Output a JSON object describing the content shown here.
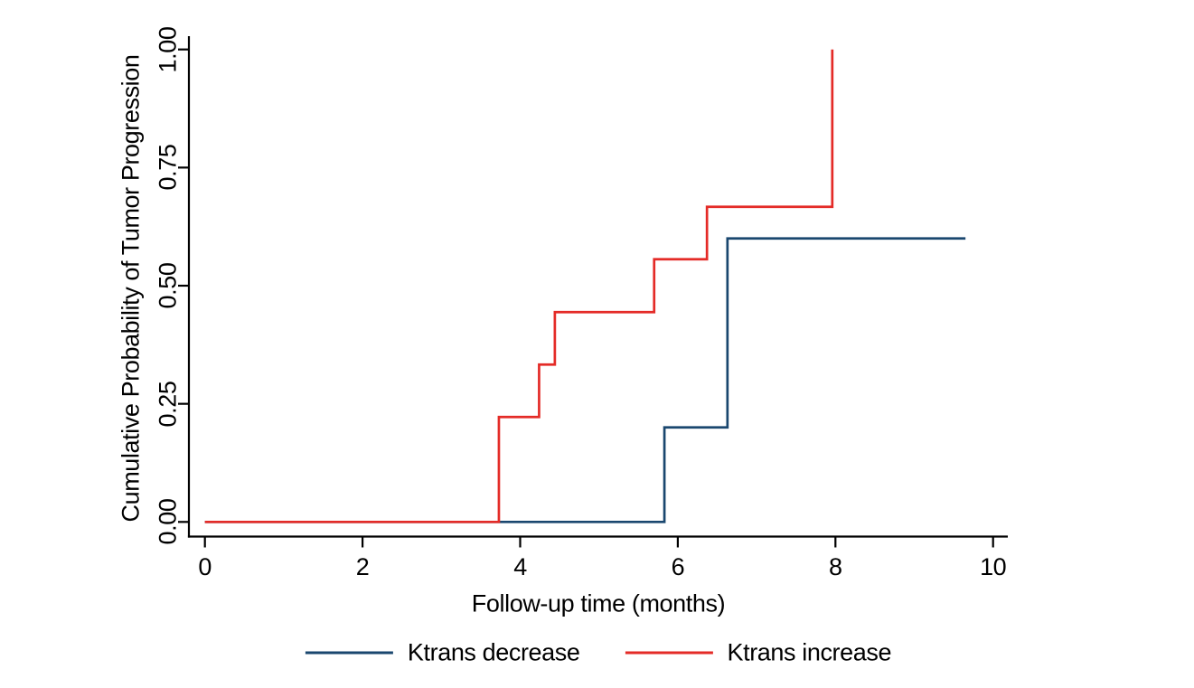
{
  "figure": {
    "background": "#ffffff",
    "text_color": "#000000",
    "axis_color": "#000000"
  },
  "chart_data": {
    "type": "line",
    "subtype": "kaplan-meier-step",
    "title": "",
    "xlabel": "Follow-up time (months)",
    "ylabel": "Cumulative Probability of Tumor Progression",
    "xlim": [
      0,
      10.4
    ],
    "ylim": [
      0,
      1.0
    ],
    "x_ticks": {
      "values": [
        0,
        2,
        4,
        6,
        8,
        10
      ],
      "labels": [
        "0",
        "2",
        "4",
        "6",
        "8",
        "10"
      ]
    },
    "y_ticks": {
      "values": [
        0,
        0.25,
        0.5,
        0.75,
        1.0
      ],
      "labels": [
        "0.00",
        "0.25",
        "0.50",
        "0.75",
        "1.00"
      ]
    },
    "grid": false,
    "legend_position": "bottom-center",
    "series": [
      {
        "name": "Ktrans decrease",
        "color": "#1a476f",
        "step_points": [
          [
            0,
            0
          ],
          [
            5.83,
            0
          ],
          [
            5.83,
            0.2
          ],
          [
            6.63,
            0.2
          ],
          [
            6.63,
            0.6
          ],
          [
            9.65,
            0.6
          ]
        ]
      },
      {
        "name": "Ktrans increase",
        "color": "#e42b27",
        "step_points": [
          [
            0,
            0
          ],
          [
            3.73,
            0
          ],
          [
            3.73,
            0.222
          ],
          [
            4.24,
            0.222
          ],
          [
            4.24,
            0.333
          ],
          [
            4.44,
            0.333
          ],
          [
            4.44,
            0.444
          ],
          [
            5.7,
            0.444
          ],
          [
            5.7,
            0.556
          ],
          [
            6.37,
            0.556
          ],
          [
            6.37,
            0.667
          ],
          [
            7.96,
            0.667
          ],
          [
            7.96,
            1.0
          ]
        ]
      }
    ]
  }
}
